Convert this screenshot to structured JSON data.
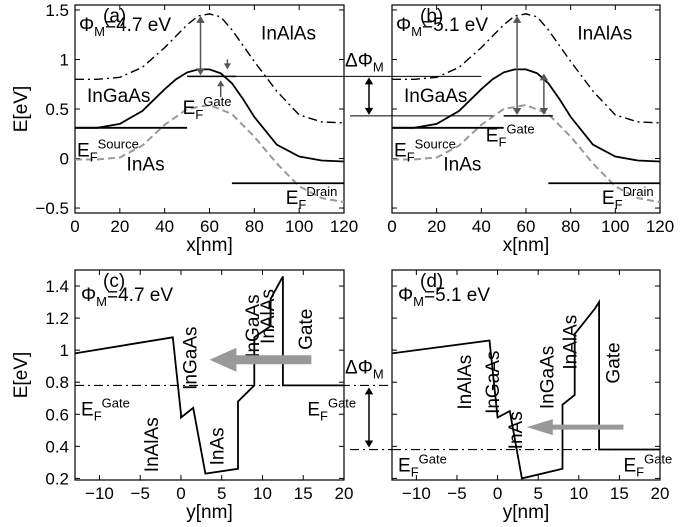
{
  "chart_data": [
    {
      "panel": "(a)",
      "type": "line",
      "xlabel": "x[nm]",
      "ylabel": "E[eV]",
      "xlim": [
        0,
        120
      ],
      "ylim": [
        -0.55,
        1.55
      ],
      "xticks": [
        "0",
        "20",
        "40",
        "60",
        "80",
        "100",
        "120"
      ],
      "yticks": [
        "−0.5",
        "0",
        "0.5",
        "1",
        "1.5"
      ],
      "phi_label": "Φ",
      "phi_sub": "M",
      "phi_value": "=4.7 eV",
      "ef_gate": {
        "main": "E",
        "sub": "F",
        "sup": "Gate"
      },
      "ef_source": {
        "main": "E",
        "sub": "F",
        "sup": "Source"
      },
      "ef_drain": {
        "main": "E",
        "sub": "F",
        "sup": "Drain"
      },
      "materials": [
        "InAlAs",
        "InGaAs",
        "InAs"
      ],
      "series": [
        {
          "name": "InAlAs",
          "style": "dash-dot",
          "x": [
            0,
            10,
            20,
            30,
            40,
            50,
            55,
            60,
            65,
            70,
            80,
            90,
            100,
            110,
            120
          ],
          "y": [
            0.8,
            0.8,
            0.82,
            0.92,
            1.12,
            1.35,
            1.44,
            1.46,
            1.43,
            1.3,
            0.98,
            0.68,
            0.44,
            0.37,
            0.36
          ]
        },
        {
          "name": "InGaAs",
          "style": "solid",
          "x": [
            0,
            10,
            20,
            30,
            40,
            45,
            50,
            55,
            60,
            65,
            70,
            75,
            80,
            90,
            100,
            110,
            120
          ],
          "y": [
            0.31,
            0.31,
            0.35,
            0.48,
            0.7,
            0.8,
            0.87,
            0.9,
            0.9,
            0.86,
            0.76,
            0.6,
            0.42,
            0.14,
            0.02,
            -0.02,
            -0.03
          ]
        },
        {
          "name": "InAs",
          "style": "dashed",
          "x": [
            0,
            10,
            20,
            30,
            40,
            50,
            60,
            70,
            80,
            90,
            100,
            110,
            120
          ],
          "y": [
            -0.01,
            -0.01,
            0.01,
            0.13,
            0.34,
            0.5,
            0.54,
            0.45,
            0.22,
            -0.05,
            -0.28,
            -0.4,
            -0.44
          ]
        }
      ],
      "fermi_levels": {
        "source": 0.31,
        "gate": 0.83,
        "drain": -0.25
      }
    },
    {
      "panel": "(b)",
      "type": "line",
      "xlabel": "x[nm]",
      "ylabel": "",
      "xlim": [
        0,
        120
      ],
      "ylim": [
        -0.55,
        1.55
      ],
      "xticks": [
        "0",
        "20",
        "40",
        "60",
        "80",
        "100",
        "120"
      ],
      "yticks": [],
      "phi_label": "Φ",
      "phi_sub": "M",
      "phi_value": "=5.1 eV",
      "ef_gate": {
        "main": "E",
        "sub": "F",
        "sup": "Gate"
      },
      "ef_source": {
        "main": "E",
        "sub": "F",
        "sup": "Source"
      },
      "ef_drain": {
        "main": "E",
        "sub": "F",
        "sup": "Drain"
      },
      "materials": [
        "InAlAs",
        "InGaAs",
        "InAs"
      ],
      "series": [
        {
          "name": "InAlAs",
          "style": "dash-dot",
          "x": [
            0,
            10,
            20,
            30,
            40,
            50,
            55,
            60,
            65,
            70,
            80,
            90,
            100,
            110,
            120
          ],
          "y": [
            0.8,
            0.8,
            0.82,
            0.92,
            1.12,
            1.35,
            1.44,
            1.46,
            1.43,
            1.3,
            0.98,
            0.68,
            0.44,
            0.37,
            0.36
          ]
        },
        {
          "name": "InGaAs",
          "style": "solid",
          "x": [
            0,
            10,
            20,
            30,
            40,
            45,
            50,
            55,
            60,
            65,
            70,
            75,
            80,
            90,
            100,
            110,
            120
          ],
          "y": [
            0.31,
            0.31,
            0.35,
            0.48,
            0.7,
            0.8,
            0.87,
            0.9,
            0.9,
            0.86,
            0.76,
            0.6,
            0.42,
            0.14,
            0.02,
            -0.02,
            -0.03
          ]
        },
        {
          "name": "InAs",
          "style": "dashed",
          "x": [
            0,
            10,
            20,
            30,
            40,
            50,
            60,
            70,
            80,
            90,
            100,
            110,
            120
          ],
          "y": [
            -0.01,
            -0.01,
            0.01,
            0.13,
            0.34,
            0.5,
            0.54,
            0.45,
            0.22,
            -0.05,
            -0.28,
            -0.4,
            -0.44
          ]
        }
      ],
      "fermi_levels": {
        "source": 0.31,
        "gate": 0.43,
        "drain": -0.25
      }
    },
    {
      "panel": "(c)",
      "type": "line",
      "xlabel": "y[nm]",
      "ylabel": "E[eV]",
      "xlim": [
        -13,
        20
      ],
      "ylim": [
        0.19,
        1.5
      ],
      "xticks": [
        "−10",
        "−5",
        "0",
        "5",
        "10",
        "15",
        "20"
      ],
      "yticks": [
        "0.2",
        "0.4",
        "0.6",
        "0.8",
        "1",
        "1.2",
        "1.4"
      ],
      "phi_label": "Φ",
      "phi_sub": "M",
      "phi_value": "=4.7 eV",
      "ef_gate": {
        "main": "E",
        "sub": "F",
        "sup": "Gate"
      },
      "materials": [
        "InAlAs",
        "InGaAs",
        "InAs",
        "InGaAs",
        "InAlAs",
        "Gate"
      ],
      "series": [
        {
          "name": "conduction band",
          "style": "solid",
          "x": [
            -13,
            -1,
            0,
            0,
            1.5,
            1.5,
            3,
            3,
            7,
            7,
            9,
            9,
            11,
            11,
            12.5,
            12.5,
            16,
            20
          ],
          "y": [
            0.98,
            1.08,
            0.6,
            0.58,
            0.64,
            0.64,
            0.23,
            0.23,
            0.26,
            0.68,
            0.78,
            1.08,
            1.15,
            1.32,
            1.46,
            0.78,
            0.78,
            0.78
          ]
        }
      ],
      "fermi_level": 0.78
    },
    {
      "panel": "(d)",
      "type": "line",
      "xlabel": "y[nm]",
      "ylabel": "",
      "xlim": [
        -13,
        20
      ],
      "ylim": [
        0.19,
        1.5
      ],
      "xticks": [
        "−10",
        "−5",
        "0",
        "5",
        "10",
        "15",
        "20"
      ],
      "yticks": [],
      "phi_label": "Φ",
      "phi_sub": "M",
      "phi_value": "=5.1 eV",
      "ef_gate": {
        "main": "E",
        "sub": "F",
        "sup": "Gate"
      },
      "materials": [
        "InAlAs",
        "InGaAs",
        "InAs",
        "InGaAs",
        "InAlAs",
        "Gate"
      ],
      "series": [
        {
          "name": "conduction band",
          "style": "solid",
          "x": [
            -13,
            -1,
            0,
            0,
            1.5,
            1.5,
            3,
            3,
            8,
            8,
            9.5,
            9.5,
            12,
            12,
            12.5,
            12.5,
            16,
            20
          ],
          "y": [
            0.98,
            1.06,
            0.58,
            0.58,
            0.62,
            0.62,
            0.2,
            0.2,
            0.26,
            0.66,
            0.72,
            1.1,
            1.26,
            1.26,
            1.3,
            0.38,
            0.38,
            0.38
          ]
        }
      ],
      "fermi_level": 0.38
    }
  ],
  "delta_phi": {
    "main": "ΔΦ",
    "sub": "M"
  },
  "colors": {
    "line": "#000000",
    "dashed": "#999999",
    "arrow": "#999999",
    "tracer_arrow": "#555555"
  }
}
